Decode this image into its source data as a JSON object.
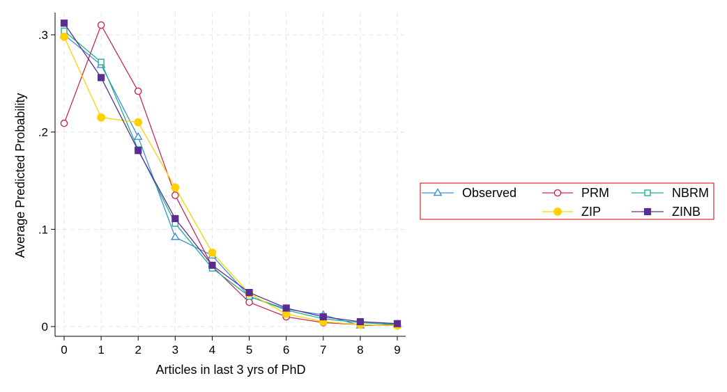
{
  "chart_data": {
    "type": "line",
    "title": "",
    "xlabel": "Articles in last 3 yrs of PhD",
    "ylabel": "Average Predicted Probability",
    "x": [
      0,
      1,
      2,
      3,
      4,
      5,
      6,
      7,
      8,
      9
    ],
    "xticks": [
      "0",
      "1",
      "2",
      "3",
      "4",
      "5",
      "6",
      "7",
      "8",
      "9"
    ],
    "yticks": [
      {
        "value": 0,
        "label": "0"
      },
      {
        "value": 0.1,
        "label": ".1"
      },
      {
        "value": 0.2,
        "label": ".2"
      },
      {
        "value": 0.3,
        "label": ".3"
      }
    ],
    "xlim": [
      0,
      9
    ],
    "ylim": [
      0,
      0.3
    ],
    "grid": true,
    "legend_position": "right",
    "series": [
      {
        "name": "Observed",
        "color": "#3d8fd9",
        "marker": "triangle-hollow",
        "values": [
          0.3,
          0.269,
          0.195,
          0.092,
          0.073,
          0.031,
          0.018,
          0.012,
          0.001,
          0.002
        ]
      },
      {
        "name": "PRM",
        "color": "#c8285a",
        "marker": "circle-hollow",
        "values": [
          0.209,
          0.31,
          0.242,
          0.135,
          0.062,
          0.025,
          0.01,
          0.004,
          0.002,
          0.001
        ]
      },
      {
        "name": "NBRM",
        "color": "#1fae92",
        "marker": "square-hollow",
        "values": [
          0.304,
          0.272,
          0.182,
          0.106,
          0.06,
          0.031,
          0.017,
          0.008,
          0.004,
          0.002
        ]
      },
      {
        "name": "ZIP",
        "color": "#ffd000",
        "marker": "circle-filled",
        "values": [
          0.298,
          0.215,
          0.21,
          0.143,
          0.076,
          0.034,
          0.013,
          0.005,
          0.002,
          0.001
        ]
      },
      {
        "name": "ZINB",
        "color": "#5a2d91",
        "marker": "square-filled",
        "values": [
          0.312,
          0.256,
          0.181,
          0.111,
          0.063,
          0.035,
          0.019,
          0.01,
          0.005,
          0.003
        ]
      }
    ]
  }
}
